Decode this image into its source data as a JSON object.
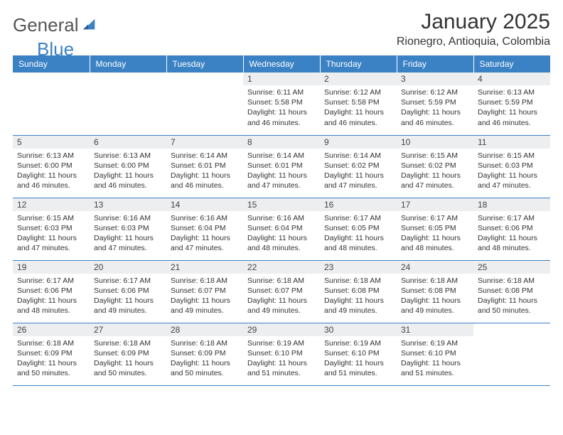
{
  "logo": {
    "text1": "General",
    "text2": "Blue"
  },
  "title": "January 2025",
  "location": "Rionegro, Antioquia, Colombia",
  "colors": {
    "header_bg": "#3b82c4",
    "header_fg": "#ffffff",
    "daynum_bg": "#eceef0",
    "border": "#3b82c4",
    "text": "#333333"
  },
  "weekdays": [
    "Sunday",
    "Monday",
    "Tuesday",
    "Wednesday",
    "Thursday",
    "Friday",
    "Saturday"
  ],
  "labels": {
    "sunrise": "Sunrise:",
    "sunset": "Sunset:",
    "daylight": "Daylight:"
  },
  "weeks": [
    [
      null,
      null,
      null,
      {
        "d": "1",
        "sunrise": "6:11 AM",
        "sunset": "5:58 PM",
        "daylight": "11 hours and 46 minutes."
      },
      {
        "d": "2",
        "sunrise": "6:12 AM",
        "sunset": "5:58 PM",
        "daylight": "11 hours and 46 minutes."
      },
      {
        "d": "3",
        "sunrise": "6:12 AM",
        "sunset": "5:59 PM",
        "daylight": "11 hours and 46 minutes."
      },
      {
        "d": "4",
        "sunrise": "6:13 AM",
        "sunset": "5:59 PM",
        "daylight": "11 hours and 46 minutes."
      }
    ],
    [
      {
        "d": "5",
        "sunrise": "6:13 AM",
        "sunset": "6:00 PM",
        "daylight": "11 hours and 46 minutes."
      },
      {
        "d": "6",
        "sunrise": "6:13 AM",
        "sunset": "6:00 PM",
        "daylight": "11 hours and 46 minutes."
      },
      {
        "d": "7",
        "sunrise": "6:14 AM",
        "sunset": "6:01 PM",
        "daylight": "11 hours and 46 minutes."
      },
      {
        "d": "8",
        "sunrise": "6:14 AM",
        "sunset": "6:01 PM",
        "daylight": "11 hours and 47 minutes."
      },
      {
        "d": "9",
        "sunrise": "6:14 AM",
        "sunset": "6:02 PM",
        "daylight": "11 hours and 47 minutes."
      },
      {
        "d": "10",
        "sunrise": "6:15 AM",
        "sunset": "6:02 PM",
        "daylight": "11 hours and 47 minutes."
      },
      {
        "d": "11",
        "sunrise": "6:15 AM",
        "sunset": "6:03 PM",
        "daylight": "11 hours and 47 minutes."
      }
    ],
    [
      {
        "d": "12",
        "sunrise": "6:15 AM",
        "sunset": "6:03 PM",
        "daylight": "11 hours and 47 minutes."
      },
      {
        "d": "13",
        "sunrise": "6:16 AM",
        "sunset": "6:03 PM",
        "daylight": "11 hours and 47 minutes."
      },
      {
        "d": "14",
        "sunrise": "6:16 AM",
        "sunset": "6:04 PM",
        "daylight": "11 hours and 47 minutes."
      },
      {
        "d": "15",
        "sunrise": "6:16 AM",
        "sunset": "6:04 PM",
        "daylight": "11 hours and 48 minutes."
      },
      {
        "d": "16",
        "sunrise": "6:17 AM",
        "sunset": "6:05 PM",
        "daylight": "11 hours and 48 minutes."
      },
      {
        "d": "17",
        "sunrise": "6:17 AM",
        "sunset": "6:05 PM",
        "daylight": "11 hours and 48 minutes."
      },
      {
        "d": "18",
        "sunrise": "6:17 AM",
        "sunset": "6:06 PM",
        "daylight": "11 hours and 48 minutes."
      }
    ],
    [
      {
        "d": "19",
        "sunrise": "6:17 AM",
        "sunset": "6:06 PM",
        "daylight": "11 hours and 48 minutes."
      },
      {
        "d": "20",
        "sunrise": "6:17 AM",
        "sunset": "6:06 PM",
        "daylight": "11 hours and 49 minutes."
      },
      {
        "d": "21",
        "sunrise": "6:18 AM",
        "sunset": "6:07 PM",
        "daylight": "11 hours and 49 minutes."
      },
      {
        "d": "22",
        "sunrise": "6:18 AM",
        "sunset": "6:07 PM",
        "daylight": "11 hours and 49 minutes."
      },
      {
        "d": "23",
        "sunrise": "6:18 AM",
        "sunset": "6:08 PM",
        "daylight": "11 hours and 49 minutes."
      },
      {
        "d": "24",
        "sunrise": "6:18 AM",
        "sunset": "6:08 PM",
        "daylight": "11 hours and 49 minutes."
      },
      {
        "d": "25",
        "sunrise": "6:18 AM",
        "sunset": "6:08 PM",
        "daylight": "11 hours and 50 minutes."
      }
    ],
    [
      {
        "d": "26",
        "sunrise": "6:18 AM",
        "sunset": "6:09 PM",
        "daylight": "11 hours and 50 minutes."
      },
      {
        "d": "27",
        "sunrise": "6:18 AM",
        "sunset": "6:09 PM",
        "daylight": "11 hours and 50 minutes."
      },
      {
        "d": "28",
        "sunrise": "6:18 AM",
        "sunset": "6:09 PM",
        "daylight": "11 hours and 50 minutes."
      },
      {
        "d": "29",
        "sunrise": "6:19 AM",
        "sunset": "6:10 PM",
        "daylight": "11 hours and 51 minutes."
      },
      {
        "d": "30",
        "sunrise": "6:19 AM",
        "sunset": "6:10 PM",
        "daylight": "11 hours and 51 minutes."
      },
      {
        "d": "31",
        "sunrise": "6:19 AM",
        "sunset": "6:10 PM",
        "daylight": "11 hours and 51 minutes."
      },
      null
    ]
  ]
}
